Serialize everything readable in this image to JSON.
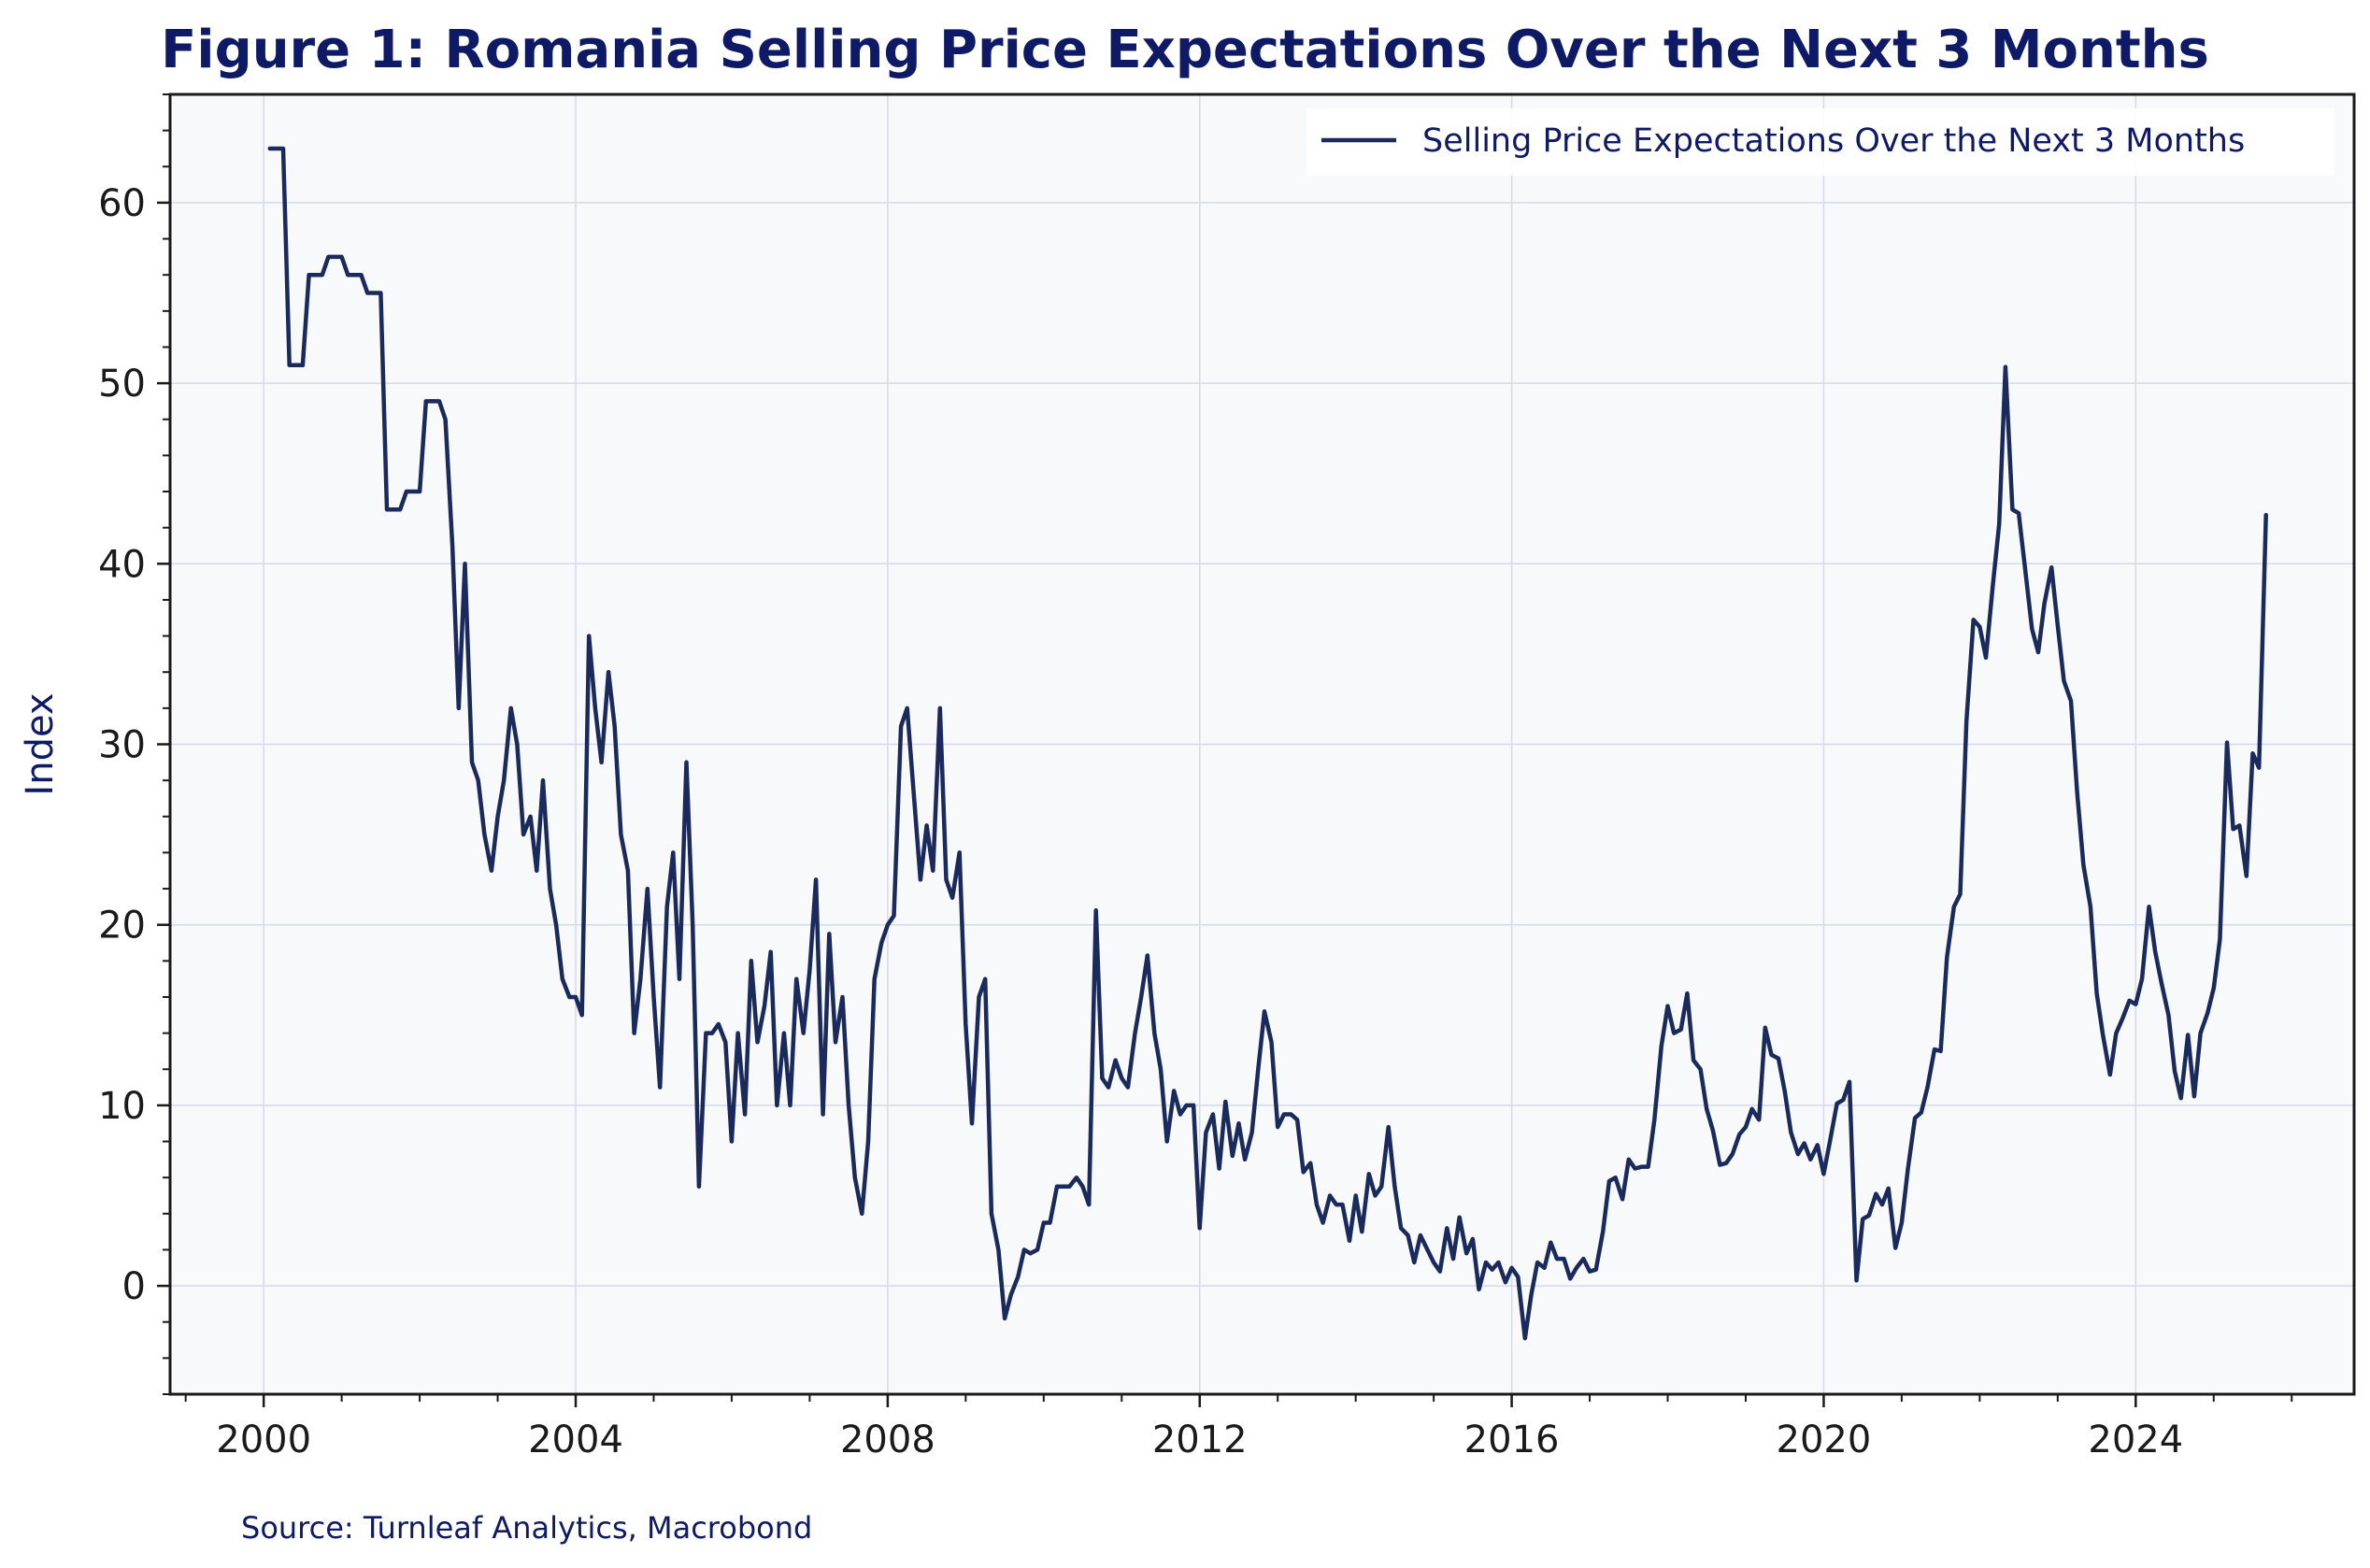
{
  "colors": {
    "title": "#0f1a66",
    "line": "#1b2a5c",
    "plot_background": "#f7f9fb",
    "grid": "#d5dae8",
    "axis": "#1a1a1a"
  },
  "source_text": "Source: Turnleaf Analytics, Macrobond",
  "chart_data": {
    "type": "line",
    "title": "Figure 1: Romania Selling Price Expectations Over the Next 3 Months",
    "xlabel": "",
    "ylabel": "Index",
    "xlim": [
      1998.8,
      2026.8
    ],
    "ylim": [
      -6,
      66
    ],
    "x_ticks": [
      2000,
      2004,
      2008,
      2012,
      2016,
      2020,
      2024
    ],
    "x_tick_labels": [
      "2000",
      "2004",
      "2008",
      "2012",
      "2016",
      "2020",
      "2024"
    ],
    "y_ticks": [
      0,
      10,
      20,
      30,
      40,
      50,
      60
    ],
    "y_tick_labels": [
      "0",
      "10",
      "20",
      "30",
      "40",
      "50",
      "60"
    ],
    "grid": true,
    "legend_position": "top-right",
    "series": [
      {
        "name": "Selling Price Expectations Over the Next 3 Months",
        "points": [
          [
            2000.08,
            63
          ],
          [
            2000.25,
            63
          ],
          [
            2000.33,
            51
          ],
          [
            2000.5,
            51
          ],
          [
            2000.58,
            56
          ],
          [
            2000.75,
            56
          ],
          [
            2000.83,
            57
          ],
          [
            2001.0,
            57
          ],
          [
            2001.08,
            56
          ],
          [
            2001.25,
            56
          ],
          [
            2001.33,
            55
          ],
          [
            2001.5,
            55
          ],
          [
            2001.58,
            43
          ],
          [
            2001.75,
            43
          ],
          [
            2001.83,
            44
          ],
          [
            2002.0,
            44
          ],
          [
            2002.08,
            49
          ],
          [
            2002.25,
            49
          ],
          [
            2002.33,
            48
          ],
          [
            2002.42,
            41
          ],
          [
            2002.5,
            32
          ],
          [
            2002.58,
            40
          ],
          [
            2002.67,
            29
          ],
          [
            2002.75,
            28
          ],
          [
            2002.83,
            25
          ],
          [
            2002.92,
            23
          ],
          [
            2003.0,
            26
          ],
          [
            2003.08,
            28
          ],
          [
            2003.17,
            32
          ],
          [
            2003.25,
            30
          ],
          [
            2003.33,
            25
          ],
          [
            2003.42,
            26
          ],
          [
            2003.5,
            23
          ],
          [
            2003.58,
            28
          ],
          [
            2003.67,
            22
          ],
          [
            2003.75,
            20
          ],
          [
            2003.83,
            17
          ],
          [
            2003.92,
            16
          ],
          [
            2004.0,
            16
          ],
          [
            2004.08,
            15
          ],
          [
            2004.17,
            36
          ],
          [
            2004.25,
            32
          ],
          [
            2004.33,
            29
          ],
          [
            2004.42,
            34
          ],
          [
            2004.5,
            31
          ],
          [
            2004.58,
            25
          ],
          [
            2004.67,
            23
          ],
          [
            2004.75,
            14
          ],
          [
            2004.83,
            17
          ],
          [
            2004.92,
            22
          ],
          [
            2005.0,
            16
          ],
          [
            2005.08,
            11
          ],
          [
            2005.17,
            21
          ],
          [
            2005.25,
            24
          ],
          [
            2005.33,
            17
          ],
          [
            2005.42,
            29
          ],
          [
            2005.5,
            20
          ],
          [
            2005.58,
            5.5
          ],
          [
            2005.67,
            14
          ],
          [
            2005.75,
            14
          ],
          [
            2005.83,
            14.5
          ],
          [
            2005.92,
            13.5
          ],
          [
            2006.0,
            8
          ],
          [
            2006.08,
            14
          ],
          [
            2006.17,
            9.5
          ],
          [
            2006.25,
            18
          ],
          [
            2006.33,
            13.5
          ],
          [
            2006.42,
            15.5
          ],
          [
            2006.5,
            18.5
          ],
          [
            2006.58,
            10
          ],
          [
            2006.67,
            14
          ],
          [
            2006.75,
            10
          ],
          [
            2006.83,
            17
          ],
          [
            2006.92,
            14
          ],
          [
            2007.0,
            17.5
          ],
          [
            2007.08,
            22.5
          ],
          [
            2007.17,
            9.5
          ],
          [
            2007.25,
            19.5
          ],
          [
            2007.33,
            13.5
          ],
          [
            2007.42,
            16
          ],
          [
            2007.5,
            10
          ],
          [
            2007.58,
            6
          ],
          [
            2007.67,
            4
          ],
          [
            2007.75,
            8
          ],
          [
            2007.83,
            17
          ],
          [
            2007.92,
            19
          ],
          [
            2008.0,
            20
          ],
          [
            2008.08,
            20.5
          ],
          [
            2008.17,
            31
          ],
          [
            2008.25,
            32
          ],
          [
            2008.33,
            27.5
          ],
          [
            2008.42,
            22.5
          ],
          [
            2008.5,
            25.5
          ],
          [
            2008.58,
            23
          ],
          [
            2008.67,
            32
          ],
          [
            2008.75,
            22.5
          ],
          [
            2008.83,
            21.5
          ],
          [
            2008.92,
            24
          ],
          [
            2009.0,
            14.5
          ],
          [
            2009.08,
            9
          ],
          [
            2009.17,
            16
          ],
          [
            2009.25,
            17
          ],
          [
            2009.33,
            4
          ],
          [
            2009.42,
            2
          ],
          [
            2009.5,
            -1.8
          ],
          [
            2009.58,
            -0.5
          ],
          [
            2009.67,
            0.5
          ],
          [
            2009.75,
            2
          ],
          [
            2009.83,
            1.8
          ],
          [
            2009.92,
            2
          ],
          [
            2010.0,
            3.5
          ],
          [
            2010.08,
            3.5
          ],
          [
            2010.17,
            5.5
          ],
          [
            2010.25,
            5.5
          ],
          [
            2010.33,
            5.5
          ],
          [
            2010.42,
            6
          ],
          [
            2010.5,
            5.5
          ],
          [
            2010.58,
            4.5
          ],
          [
            2010.67,
            20.8
          ],
          [
            2010.75,
            11.5
          ],
          [
            2010.83,
            11
          ],
          [
            2010.92,
            12.5
          ],
          [
            2011.0,
            11.5
          ],
          [
            2011.08,
            11
          ],
          [
            2011.17,
            14
          ],
          [
            2011.25,
            16
          ],
          [
            2011.33,
            18.3
          ],
          [
            2011.42,
            14
          ],
          [
            2011.5,
            12
          ],
          [
            2011.58,
            8
          ],
          [
            2011.67,
            10.8
          ],
          [
            2011.75,
            9.5
          ],
          [
            2011.83,
            10
          ],
          [
            2011.92,
            10
          ],
          [
            2012.0,
            3.2
          ],
          [
            2012.08,
            8.5
          ],
          [
            2012.17,
            9.5
          ],
          [
            2012.25,
            6.5
          ],
          [
            2012.33,
            10.2
          ],
          [
            2012.42,
            7.2
          ],
          [
            2012.5,
            9
          ],
          [
            2012.58,
            7
          ],
          [
            2012.67,
            8.5
          ],
          [
            2012.75,
            12
          ],
          [
            2012.83,
            15.2
          ],
          [
            2012.92,
            13.5
          ],
          [
            2013.0,
            8.8
          ],
          [
            2013.08,
            9.5
          ],
          [
            2013.17,
            9.5
          ],
          [
            2013.25,
            9.2
          ],
          [
            2013.33,
            6.3
          ],
          [
            2013.42,
            6.8
          ],
          [
            2013.5,
            4.5
          ],
          [
            2013.58,
            3.5
          ],
          [
            2013.67,
            5
          ],
          [
            2013.75,
            4.5
          ],
          [
            2013.83,
            4.5
          ],
          [
            2013.92,
            2.5
          ],
          [
            2014.0,
            5
          ],
          [
            2014.08,
            3
          ],
          [
            2014.17,
            6.2
          ],
          [
            2014.25,
            5
          ],
          [
            2014.33,
            5.5
          ],
          [
            2014.42,
            8.8
          ],
          [
            2014.5,
            5.5
          ],
          [
            2014.58,
            3.2
          ],
          [
            2014.67,
            2.8
          ],
          [
            2014.75,
            1.3
          ],
          [
            2014.83,
            2.8
          ],
          [
            2014.92,
            2
          ],
          [
            2015.0,
            1.3
          ],
          [
            2015.08,
            0.8
          ],
          [
            2015.17,
            3.2
          ],
          [
            2015.25,
            1.5
          ],
          [
            2015.33,
            3.8
          ],
          [
            2015.42,
            1.8
          ],
          [
            2015.5,
            2.6
          ],
          [
            2015.58,
            -0.2
          ],
          [
            2015.67,
            1.3
          ],
          [
            2015.75,
            0.9
          ],
          [
            2015.83,
            1.3
          ],
          [
            2015.92,
            0.2
          ],
          [
            2016.0,
            1
          ],
          [
            2016.08,
            0.5
          ],
          [
            2016.17,
            -2.9
          ],
          [
            2016.25,
            -0.5
          ],
          [
            2016.33,
            1.3
          ],
          [
            2016.42,
            1
          ],
          [
            2016.5,
            2.4
          ],
          [
            2016.58,
            1.5
          ],
          [
            2016.67,
            1.5
          ],
          [
            2016.75,
            0.4
          ],
          [
            2016.83,
            1
          ],
          [
            2016.92,
            1.5
          ],
          [
            2017.0,
            0.8
          ],
          [
            2017.08,
            0.9
          ],
          [
            2017.17,
            3
          ],
          [
            2017.25,
            5.8
          ],
          [
            2017.33,
            6
          ],
          [
            2017.42,
            4.8
          ],
          [
            2017.5,
            7
          ],
          [
            2017.58,
            6.5
          ],
          [
            2017.67,
            6.6
          ],
          [
            2017.75,
            6.6
          ],
          [
            2017.83,
            9.2
          ],
          [
            2017.92,
            13.3
          ],
          [
            2018.0,
            15.5
          ],
          [
            2018.08,
            14
          ],
          [
            2018.17,
            14.2
          ],
          [
            2018.25,
            16.2
          ],
          [
            2018.33,
            12.5
          ],
          [
            2018.42,
            12
          ],
          [
            2018.5,
            9.8
          ],
          [
            2018.58,
            8.6
          ],
          [
            2018.67,
            6.7
          ],
          [
            2018.75,
            6.8
          ],
          [
            2018.83,
            7.3
          ],
          [
            2018.92,
            8.4
          ],
          [
            2019.0,
            8.8
          ],
          [
            2019.08,
            9.8
          ],
          [
            2019.17,
            9.2
          ],
          [
            2019.25,
            14.3
          ],
          [
            2019.33,
            12.8
          ],
          [
            2019.42,
            12.6
          ],
          [
            2019.5,
            10.8
          ],
          [
            2019.58,
            8.5
          ],
          [
            2019.67,
            7.3
          ],
          [
            2019.75,
            7.9
          ],
          [
            2019.83,
            7
          ],
          [
            2019.92,
            7.8
          ],
          [
            2020.0,
            6.2
          ],
          [
            2020.08,
            8
          ],
          [
            2020.17,
            10.1
          ],
          [
            2020.25,
            10.3
          ],
          [
            2020.33,
            11.3
          ],
          [
            2020.42,
            0.3
          ],
          [
            2020.5,
            3.7
          ],
          [
            2020.58,
            3.9
          ],
          [
            2020.67,
            5.1
          ],
          [
            2020.75,
            4.5
          ],
          [
            2020.83,
            5.4
          ],
          [
            2020.92,
            2.1
          ],
          [
            2021.0,
            3.5
          ],
          [
            2021.08,
            6.5
          ],
          [
            2021.17,
            9.3
          ],
          [
            2021.25,
            9.6
          ],
          [
            2021.33,
            11
          ],
          [
            2021.42,
            13.1
          ],
          [
            2021.5,
            13
          ],
          [
            2021.58,
            18.2
          ],
          [
            2021.67,
            21
          ],
          [
            2021.75,
            21.7
          ],
          [
            2021.83,
            31.3
          ],
          [
            2021.92,
            36.9
          ],
          [
            2022.0,
            36.5
          ],
          [
            2022.08,
            34.8
          ],
          [
            2022.17,
            38.9
          ],
          [
            2022.25,
            42.2
          ],
          [
            2022.33,
            50.9
          ],
          [
            2022.42,
            43
          ],
          [
            2022.5,
            42.8
          ],
          [
            2022.58,
            39.8
          ],
          [
            2022.67,
            36.4
          ],
          [
            2022.75,
            35.1
          ],
          [
            2022.83,
            37.8
          ],
          [
            2022.92,
            39.8
          ],
          [
            2023.0,
            36.6
          ],
          [
            2023.08,
            33.5
          ],
          [
            2023.17,
            32.4
          ],
          [
            2023.25,
            27.3
          ],
          [
            2023.33,
            23.3
          ],
          [
            2023.42,
            21
          ],
          [
            2023.5,
            16.2
          ],
          [
            2023.58,
            13.9
          ],
          [
            2023.67,
            11.7
          ],
          [
            2023.75,
            14
          ],
          [
            2023.83,
            14.8
          ],
          [
            2023.92,
            15.8
          ],
          [
            2024.0,
            15.6
          ],
          [
            2024.08,
            17
          ],
          [
            2024.17,
            21
          ],
          [
            2024.25,
            18.5
          ],
          [
            2024.33,
            16.8
          ],
          [
            2024.42,
            15
          ],
          [
            2024.5,
            11.9
          ],
          [
            2024.58,
            10.4
          ],
          [
            2024.67,
            13.9
          ],
          [
            2024.75,
            10.5
          ],
          [
            2024.83,
            14
          ],
          [
            2024.92,
            15.1
          ],
          [
            2025.0,
            16.5
          ],
          [
            2025.08,
            19.2
          ],
          [
            2025.17,
            30.1
          ],
          [
            2025.25,
            25.3
          ],
          [
            2025.33,
            25.5
          ],
          [
            2025.42,
            22.7
          ],
          [
            2025.5,
            29.5
          ],
          [
            2025.58,
            28.7
          ],
          [
            2025.67,
            42.7
          ]
        ]
      }
    ]
  }
}
